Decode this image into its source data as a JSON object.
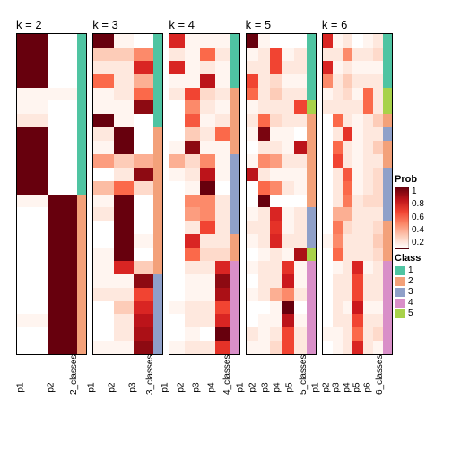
{
  "prob_colors": {
    "0.0": "#ffffff",
    "0.05": "#fff5f0",
    "0.1": "#fee8de",
    "0.15": "#fedacb",
    "0.2": "#fdccb8",
    "0.25": "#fcbda4",
    "0.3": "#fcaf93",
    "0.35": "#fc9d7f",
    "0.4": "#fc8a6a",
    "0.45": "#fb7a5a",
    "0.5": "#fb694a",
    "0.55": "#f6573f",
    "0.6": "#f14432",
    "0.65": "#e53228",
    "0.7": "#d92523",
    "0.75": "#cb181d",
    "0.8": "#bc141a",
    "0.85": "#ab1016",
    "0.9": "#8d0a12",
    "0.95": "#7a0510",
    "1.0": "#67000d"
  },
  "class_colors": {
    "1": "#4fc4a2",
    "2": "#f3a17a",
    "3": "#8fa0c9",
    "4": "#d98fc8",
    "5": "#a8d24a"
  },
  "legend": {
    "prob_title": "Prob",
    "prob_ticks": [
      "1",
      "0.8",
      "0.6",
      "0.4",
      "0.2"
    ],
    "class_title": "Class",
    "class_items": [
      "1",
      "2",
      "3",
      "4",
      "5"
    ]
  },
  "panels": [
    {
      "k": 2,
      "title": "k = 2",
      "class_label": "2_classes",
      "p_labels": [
        "p1",
        "p2"
      ],
      "classes": [
        1,
        1,
        1,
        1,
        1,
        1,
        1,
        1,
        1,
        1,
        1,
        1,
        2,
        2,
        2,
        2,
        2,
        2,
        2,
        2,
        2,
        2,
        2,
        2
      ],
      "cols": [
        [
          1,
          1,
          1,
          1,
          0.05,
          0.05,
          0.1,
          1,
          1,
          1,
          1,
          1,
          0.05,
          0,
          0,
          0,
          0,
          0,
          0,
          0,
          0,
          0.05,
          0,
          0
        ],
        [
          0,
          0,
          0,
          0,
          0.05,
          0,
          0,
          0,
          0,
          0,
          0,
          0,
          1,
          1,
          1,
          1,
          1,
          1,
          1,
          1,
          1,
          1,
          1,
          1
        ]
      ]
    },
    {
      "k": 3,
      "title": "k = 3",
      "class_label": "3_classes",
      "p_labels": [
        "p1",
        "p2",
        "p3"
      ],
      "classes": [
        1,
        1,
        1,
        1,
        1,
        1,
        1,
        2,
        2,
        2,
        2,
        2,
        2,
        2,
        2,
        2,
        2,
        2,
        3,
        3,
        3,
        3,
        3,
        3
      ],
      "cols": [
        [
          1,
          0.2,
          0.1,
          0.5,
          0.05,
          0.05,
          1,
          0.1,
          0.05,
          0.35,
          0,
          0.25,
          0.05,
          0.1,
          0,
          0,
          0.05,
          0.05,
          0.05,
          0.1,
          0,
          0,
          0,
          0.05
        ],
        [
          0.05,
          0.2,
          0.1,
          0.1,
          0.1,
          0.05,
          0.05,
          1,
          1,
          0.2,
          0.1,
          0.5,
          1,
          1,
          1,
          1,
          1,
          0.7,
          0.05,
          0.1,
          0.2,
          0.1,
          0.1,
          0.05
        ],
        [
          0,
          0.4,
          0.7,
          0.3,
          0.5,
          0.9,
          0,
          0,
          0,
          0.3,
          0.9,
          0.15,
          0,
          0,
          0,
          0.05,
          0,
          0.2,
          0.9,
          0.6,
          0.7,
          0.8,
          0.85,
          0.9
        ]
      ]
    },
    {
      "k": 4,
      "title": "k = 4",
      "class_label": "4_classes",
      "p_labels": [
        "p1",
        "p2",
        "p3",
        "p4"
      ],
      "classes": [
        1,
        1,
        1,
        1,
        2,
        2,
        2,
        2,
        2,
        3,
        3,
        3,
        3,
        3,
        3,
        2,
        2,
        4,
        4,
        4,
        4,
        4,
        4,
        4
      ],
      "cols": [
        [
          0.7,
          0.1,
          0.7,
          0.05,
          0.1,
          0,
          0,
          0,
          0.05,
          0.3,
          0.05,
          0,
          0,
          0,
          0,
          0,
          0,
          0,
          0,
          0,
          0.05,
          0,
          0,
          0.05
        ],
        [
          0.05,
          0.05,
          0.05,
          0.05,
          0.6,
          0.4,
          0.55,
          0.2,
          0.9,
          0.15,
          0.1,
          0.05,
          0.4,
          0.35,
          0.1,
          0.7,
          0.5,
          0.1,
          0.05,
          0.05,
          0.1,
          0.1,
          0.05,
          0.1
        ],
        [
          0.05,
          0.5,
          0.1,
          0.8,
          0.15,
          0.1,
          0.05,
          0.1,
          0.05,
          0.4,
          0.8,
          1,
          0.4,
          0.4,
          0.6,
          0.1,
          0.15,
          0.1,
          0.05,
          0.05,
          0.1,
          0.1,
          0,
          0.1
        ],
        [
          0.05,
          0.1,
          0.05,
          0.05,
          0.1,
          0.05,
          0.1,
          0.5,
          0.05,
          0.05,
          0.05,
          0,
          0.1,
          0.1,
          0.1,
          0.1,
          0.15,
          0.7,
          0.9,
          0.85,
          0.6,
          0.7,
          1,
          0.65
        ]
      ]
    },
    {
      "k": 5,
      "title": "k = 5",
      "class_label": "5_classes",
      "p_labels": [
        "p1",
        "p2",
        "p3",
        "p4",
        "p5"
      ],
      "classes": [
        1,
        1,
        1,
        1,
        1,
        5,
        2,
        2,
        2,
        2,
        2,
        2,
        2,
        3,
        3,
        3,
        5,
        4,
        4,
        4,
        4,
        4,
        4,
        4
      ],
      "cols": [
        [
          1,
          0.05,
          0.1,
          0.6,
          0.5,
          0.05,
          0.1,
          0.05,
          0,
          0.05,
          0.8,
          0,
          0,
          0.05,
          0.1,
          0.05,
          0,
          0.05,
          0,
          0.05,
          0,
          0,
          0.1,
          0.05
        ],
        [
          0.05,
          0.1,
          0.1,
          0.1,
          0.1,
          0.1,
          0.5,
          0.95,
          0.1,
          0.4,
          0.1,
          0.5,
          1,
          0.1,
          0.1,
          0.1,
          0.05,
          0.1,
          0.1,
          0.1,
          0,
          0.05,
          0.05,
          0.05
        ],
        [
          0,
          0.6,
          0.6,
          0.15,
          0.2,
          0.1,
          0.15,
          0.05,
          0.1,
          0.35,
          0.05,
          0.4,
          0,
          0.7,
          0.65,
          0.7,
          0.1,
          0.1,
          0.1,
          0.3,
          0.05,
          0.05,
          0.1,
          0.15
        ],
        [
          0,
          0.05,
          0.1,
          0.05,
          0.1,
          0.1,
          0.1,
          0.05,
          0.05,
          0.1,
          0.05,
          0.1,
          0,
          0.05,
          0.05,
          0.1,
          0.05,
          0.65,
          0.75,
          0.4,
          1,
          0.8,
          0.6,
          0.6
        ],
        [
          0,
          0.1,
          0.1,
          0.05,
          0.1,
          0.6,
          0.1,
          0,
          0.8,
          0.1,
          0.05,
          0.05,
          0,
          0.1,
          0.1,
          0.1,
          0.85,
          0.05,
          0.05,
          0.1,
          0,
          0.05,
          0.1,
          0.1
        ]
      ]
    },
    {
      "k": 6,
      "title": "k = 6",
      "class_label": "6_classes",
      "p_labels": [
        "p1",
        "p2",
        "p3",
        "p4",
        "p5",
        "p6"
      ],
      "classes": [
        1,
        1,
        1,
        1,
        5,
        5,
        2,
        3,
        2,
        2,
        3,
        3,
        3,
        3,
        2,
        2,
        2,
        4,
        4,
        4,
        4,
        4,
        4,
        4
      ],
      "cols": [
        [
          0.7,
          0.1,
          0.7,
          0.4,
          0.05,
          0.1,
          0,
          0,
          0,
          0,
          0,
          0,
          0,
          0,
          0,
          0.05,
          0,
          0,
          0,
          0,
          0,
          0,
          0.05,
          0
        ],
        [
          0.05,
          0.1,
          0.05,
          0.1,
          0.1,
          0.1,
          0.5,
          0.1,
          0.5,
          0.6,
          0.1,
          0.1,
          0.1,
          0.3,
          0.45,
          0.4,
          0.5,
          0.05,
          0.1,
          0.1,
          0.1,
          0.1,
          0.05,
          0.05
        ],
        [
          0.1,
          0.4,
          0.1,
          0.2,
          0.15,
          0.1,
          0.1,
          0.65,
          0.1,
          0.1,
          0.55,
          0.5,
          0.45,
          0.3,
          0.15,
          0.1,
          0.1,
          0.1,
          0.1,
          0.1,
          0.05,
          0.1,
          0.1,
          0.1
        ],
        [
          0,
          0.1,
          0.05,
          0.1,
          0.05,
          0.1,
          0.05,
          0.05,
          0.05,
          0.05,
          0.05,
          0.05,
          0.1,
          0.1,
          0.1,
          0.1,
          0.1,
          0.7,
          0.6,
          0.6,
          0.75,
          0.6,
          0.5,
          0.7
        ],
        [
          0.05,
          0.1,
          0.05,
          0.1,
          0.5,
          0.5,
          0.1,
          0.1,
          0.1,
          0.1,
          0.1,
          0.1,
          0.15,
          0.1,
          0.1,
          0.1,
          0.1,
          0.05,
          0.1,
          0.1,
          0.05,
          0.1,
          0.1,
          0.1
        ],
        [
          0.1,
          0.15,
          0.05,
          0.1,
          0.1,
          0.1,
          0.2,
          0.1,
          0.2,
          0.1,
          0.15,
          0.15,
          0.15,
          0.1,
          0.15,
          0.2,
          0.15,
          0.1,
          0.1,
          0.1,
          0.05,
          0.1,
          0.15,
          0.05
        ]
      ]
    }
  ]
}
